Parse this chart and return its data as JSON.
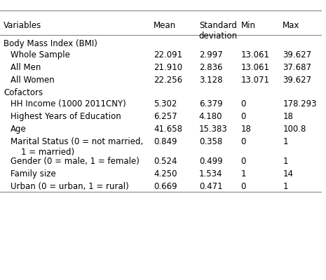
{
  "columns": [
    "Variables",
    "Mean",
    "Standard\ndeviation",
    "Min",
    "Max"
  ],
  "header_row": [
    "Variables",
    "Mean",
    "Standard\ndeviation",
    "Min",
    "Max"
  ],
  "sections": [
    {
      "header": "Body Mass Index (BMI)",
      "rows": [
        {
          "label": "    Whole Sample",
          "mean": "22.091",
          "sd": "2.997",
          "min": "13.061",
          "max": "39.627"
        },
        {
          "label": "    All Men",
          "mean": "21.910",
          "sd": "2.836",
          "min": "13.061",
          "max": "37.687"
        },
        {
          "label": "    All Women",
          "mean": "22.256",
          "sd": "3.128",
          "min": "13.071",
          "max": "39.627"
        }
      ]
    },
    {
      "header": "Cofactors",
      "rows": [
        {
          "label": "    HH Income (1000 2011CNY)",
          "mean": "5.302",
          "sd": "6.379",
          "min": "0",
          "max": "178.293"
        },
        {
          "label": "    Highest Years of Education",
          "mean": "6.257",
          "sd": "4.180",
          "min": "0",
          "max": "18"
        },
        {
          "label": "    Age",
          "mean": "41.658",
          "sd": "15.383",
          "min": "18",
          "max": "100.8"
        },
        {
          "label": "    Marital Status (0 = not married,\n    1 = married)",
          "mean": "0.849",
          "sd": "0.358",
          "min": "0",
          "max": "1"
        },
        {
          "label": "    Gender (0 = male, 1 = female)",
          "mean": "0.524",
          "sd": "0.499",
          "min": "0",
          "max": "1"
        },
        {
          "label": "    Family size",
          "mean": "4.250",
          "sd": "1.534",
          "min": "1",
          "max": "14"
        },
        {
          "label": "    Urban (0 = urban, 1 = rural)",
          "mean": "0.669",
          "sd": "0.471",
          "min": "0",
          "max": "1"
        }
      ]
    }
  ],
  "bg_color": "#ffffff",
  "text_color": "#000000",
  "font_size": 8.5,
  "header_font_size": 8.5
}
